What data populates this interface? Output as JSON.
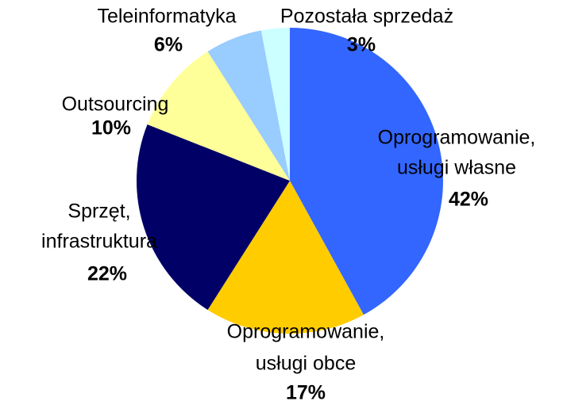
{
  "chart_data": {
    "type": "pie",
    "categories": [
      [
        "Oprogramowanie,",
        "usługi własne"
      ],
      [
        "Oprogramowanie,",
        "usługi obce"
      ],
      [
        "Sprzęt,",
        "infrastruktura"
      ],
      [
        "Outsourcing"
      ],
      [
        "Teleinformatyka"
      ],
      [
        "Pozostała sprzedaż"
      ]
    ],
    "values": [
      42,
      17,
      22,
      10,
      6,
      3
    ],
    "value_labels": [
      "42%",
      "17%",
      "22%",
      "10%",
      "6%",
      "3%"
    ],
    "colors": [
      "#3366ff",
      "#ffcc00",
      "#000066",
      "#ffff99",
      "#99ccff",
      "#ccffff"
    ]
  }
}
